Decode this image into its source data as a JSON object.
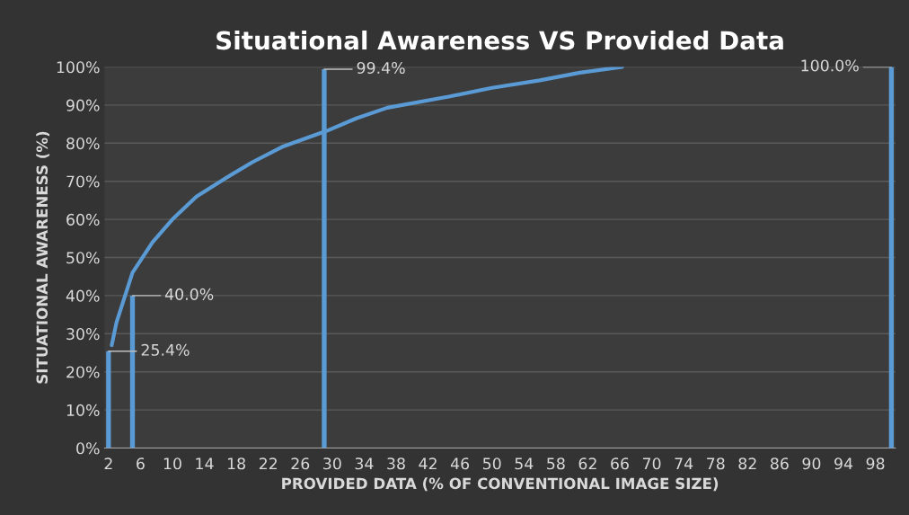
{
  "chart_data": {
    "type": "bar",
    "title": "Situational Awareness VS Provided Data",
    "xlabel": "PROVIDED DATA (% OF CONVENTIONAL IMAGE SIZE)",
    "ylabel": "SITUATIONAL AWARENESS (%)",
    "xlim": [
      1.5,
      100.5
    ],
    "xticks": [
      2,
      6,
      10,
      14,
      18,
      22,
      26,
      30,
      34,
      38,
      42,
      46,
      50,
      54,
      58,
      62,
      66,
      70,
      74,
      78,
      82,
      86,
      90,
      94,
      98
    ],
    "ylim": [
      0,
      100
    ],
    "yticks": [
      {
        "value": 0,
        "label": "0%"
      },
      {
        "value": 10,
        "label": "10%"
      },
      {
        "value": 20,
        "label": "20%"
      },
      {
        "value": 30,
        "label": "30%"
      },
      {
        "value": 40,
        "label": "40%"
      },
      {
        "value": 50,
        "label": "50%"
      },
      {
        "value": 60,
        "label": "60%"
      },
      {
        "value": 70,
        "label": "70%"
      },
      {
        "value": 80,
        "label": "80%"
      },
      {
        "value": 90,
        "label": "90%"
      },
      {
        "value": 100,
        "label": "100%"
      }
    ],
    "grid": "y",
    "legend": false,
    "series": [
      {
        "color": "#5b9bd5",
        "x": [
          2,
          5,
          29,
          100
        ],
        "values": [
          25.4,
          40.0,
          99.4,
          100.0
        ],
        "value_labels": [
          "25.4%",
          "40.0%",
          "99.4%",
          "100.0%"
        ]
      },
      {
        "type": "line",
        "color": "#5b9bd5",
        "x": [
          2.4,
          3,
          5,
          7.5,
          10,
          13,
          16.8,
          20,
          23.7,
          29.4,
          33,
          36.9,
          44.6,
          50,
          56,
          61,
          66.3
        ],
        "values": [
          27,
          33,
          46,
          54,
          60,
          66,
          71,
          75,
          79,
          83.3,
          86.5,
          89.3,
          92.2,
          94.5,
          96.5,
          98.5,
          100
        ]
      }
    ]
  }
}
